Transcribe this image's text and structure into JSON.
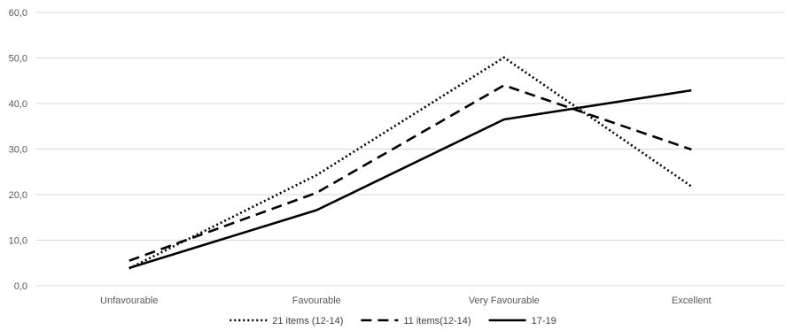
{
  "chart_data": {
    "type": "line",
    "title": "",
    "xlabel": "",
    "ylabel": "",
    "categories": [
      "Unfavourable",
      "Favourable",
      "Very Favourable",
      "Excellent"
    ],
    "ylim": [
      0,
      60
    ],
    "yticks": [
      "0,0",
      "10,0",
      "20,0",
      "30,0",
      "40,0",
      "50,0",
      "60,0"
    ],
    "ytick_values": [
      0,
      10,
      20,
      30,
      40,
      50,
      60
    ],
    "grid": true,
    "legend_position": "bottom",
    "series": [
      {
        "name": "21 items (12-14)",
        "values": [
          3.8,
          24.3,
          50.1,
          21.8
        ],
        "style": "dotted",
        "color": "#000000"
      },
      {
        "name": "11 items(12-14)",
        "values": [
          5.5,
          20.4,
          44.0,
          29.9
        ],
        "style": "dashed",
        "color": "#000000"
      },
      {
        "name": "17-19",
        "values": [
          3.9,
          16.6,
          36.5,
          42.9
        ],
        "style": "solid",
        "color": "#000000"
      }
    ]
  }
}
